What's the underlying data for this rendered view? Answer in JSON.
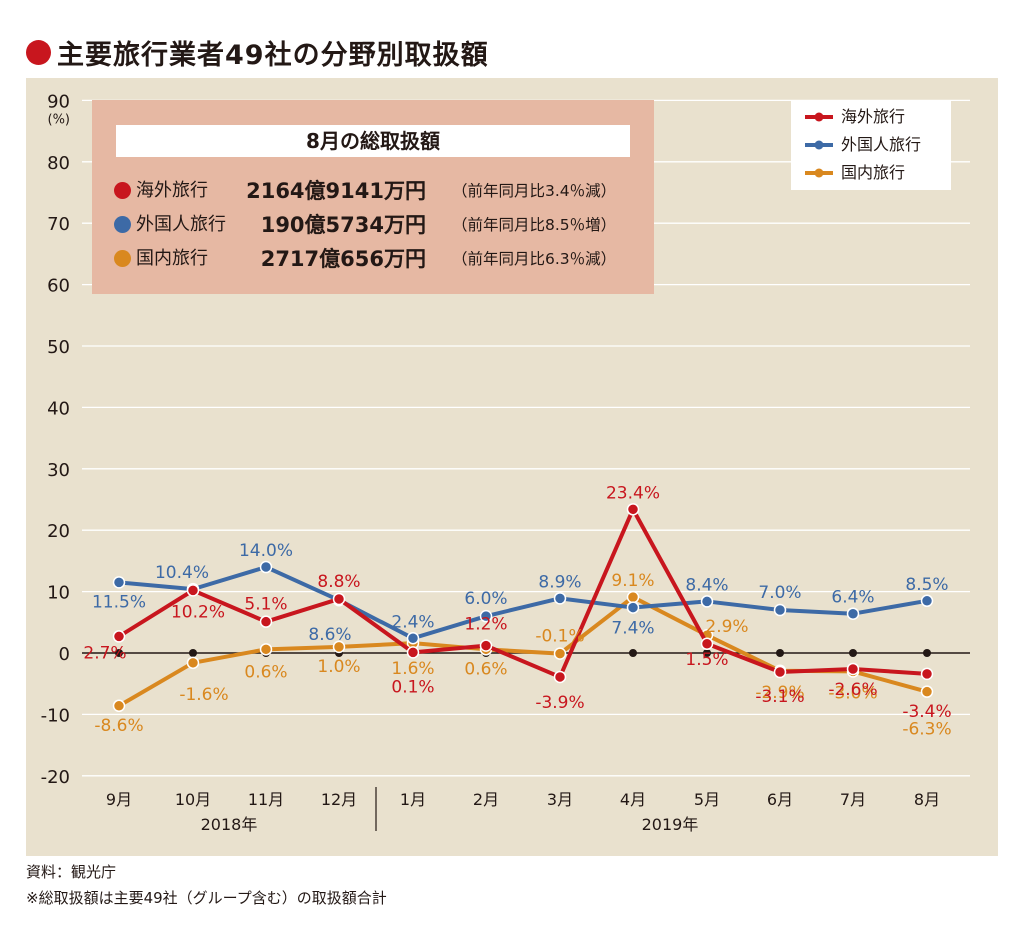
{
  "title": "主要旅行業者49社の分野別取扱額",
  "summary": {
    "heading": "8月の総取扱額",
    "rows": [
      {
        "name": "海外旅行",
        "amount": "2164億9141万円",
        "note": "（前年同月比3.4％減）",
        "color": "#c8161e"
      },
      {
        "name": "外国人旅行",
        "amount": "190億5734万円",
        "note": "（前年同月比8.5％増）",
        "color": "#3d6aa6"
      },
      {
        "name": "国内旅行",
        "amount": "2717億656万円",
        "note": "（前年同月比6.3％減）",
        "color": "#d9881f"
      }
    ]
  },
  "footer": {
    "source": "資料：観光庁",
    "note": "※総取扱額は主要49社（グループ含む）の取扱額合計"
  },
  "chart_data": {
    "type": "line",
    "categories": [
      "9月",
      "10月",
      "11月",
      "12月",
      "1月",
      "2月",
      "3月",
      "4月",
      "5月",
      "6月",
      "7月",
      "8月"
    ],
    "year_labels": [
      "2018年",
      "2019年"
    ],
    "ylabel": "(%)",
    "ylim": [
      -20,
      90
    ],
    "yticks": [
      90,
      80,
      70,
      60,
      50,
      40,
      30,
      20,
      10,
      0,
      -10,
      -20
    ],
    "grid": true,
    "legend_position": "top-right",
    "series": [
      {
        "name": "海外旅行",
        "color": "#c8161e",
        "values": [
          2.7,
          10.2,
          5.1,
          8.8,
          0.1,
          1.2,
          -3.9,
          23.4,
          1.5,
          -3.1,
          -2.6,
          -3.4
        ],
        "labels": [
          "2.7%",
          "10.2%",
          "5.1%",
          "8.8%",
          "0.1%",
          "1.2%",
          "-3.9%",
          "23.4%",
          "1.5%",
          "-3.1%",
          "-2.6%",
          "-3.4%"
        ]
      },
      {
        "name": "外国人旅行",
        "color": "#3d6aa6",
        "values": [
          11.5,
          10.4,
          14.0,
          8.6,
          2.4,
          6.0,
          8.9,
          7.4,
          8.4,
          7.0,
          6.4,
          8.5
        ],
        "labels": [
          "11.5%",
          "10.4%",
          "14.0%",
          "8.6%",
          "2.4%",
          "6.0%",
          "8.9%",
          "7.4%",
          "8.4%",
          "7.0%",
          "6.4%",
          "8.5%"
        ]
      },
      {
        "name": "国内旅行",
        "color": "#d9881f",
        "values": [
          -8.6,
          -1.6,
          0.6,
          1.0,
          1.6,
          0.6,
          -0.1,
          9.1,
          2.9,
          -2.9,
          -3.0,
          -6.3
        ],
        "labels": [
          "-8.6%",
          "-1.6%",
          "0.6%",
          "1.0%",
          "1.6%",
          "0.6%",
          "-0.1%",
          "9.1%",
          "2.9%",
          "-2.9%",
          "-3.0%",
          "-6.3%"
        ]
      }
    ]
  }
}
